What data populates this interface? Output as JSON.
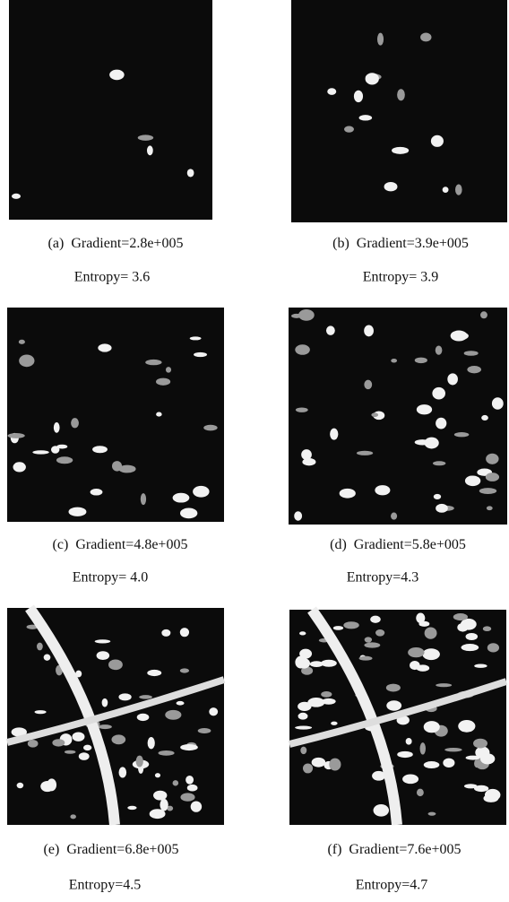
{
  "figure": {
    "panels": [
      {
        "label": "(a)",
        "gradient": "Gradient=2.8e+005",
        "entropy": "Entropy= 3.6"
      },
      {
        "label": "(b)",
        "gradient": "Gradient=3.9e+005",
        "entropy": "Entropy= 3.9"
      },
      {
        "label": "(c)",
        "gradient": "Gradient=4.8e+005",
        "entropy": "Entropy= 4.0"
      },
      {
        "label": "(d)",
        "gradient": "Gradient=5.8e+005",
        "entropy": "Entropy=4.3"
      },
      {
        "label": "(e)",
        "gradient": "Gradient=6.8e+005",
        "entropy": "Entropy=4.5"
      },
      {
        "label": "(f)",
        "gradient": "Gradient=7.6e+005",
        "entropy": "Entropy=4.7"
      }
    ]
  }
}
